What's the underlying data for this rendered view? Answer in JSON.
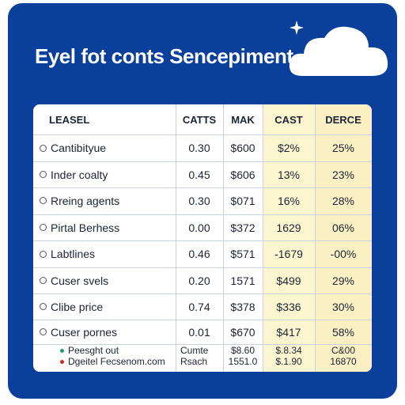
{
  "title": "Eyel fot conts Sencepiment",
  "colors": {
    "panel": "#0a3f9c",
    "highlight_a": "#fbf6cf",
    "highlight_b": "#fbf0c3",
    "legend_green": "#1e9e6b",
    "legend_red": "#c62828"
  },
  "icons": {
    "cloud": "cloud-icon",
    "sparkle": "sparkle-icon"
  },
  "table": {
    "headers": [
      "LEASEL",
      "CATTS",
      "MAK",
      "CAST",
      "DERCE"
    ],
    "rows": [
      {
        "label": "Cantibityue",
        "catts": "0.30",
        "mak": "$600",
        "cast": "$2%",
        "derce": "25%"
      },
      {
        "label": "Inder coalty",
        "catts": "0.45",
        "mak": "$606",
        "cast": "13%",
        "derce": "23%"
      },
      {
        "label": "Rreing agents",
        "catts": "0.30",
        "mak": "$071",
        "cast": "16%",
        "derce": "28%"
      },
      {
        "label": "Pirtal Berhess",
        "catts": "0.00",
        "mak": "$372",
        "cast": "1629",
        "derce": "06%"
      },
      {
        "label": "Labtlines",
        "catts": "0.46",
        "mak": "$571",
        "cast": "-1679",
        "derce": "-00%"
      },
      {
        "label": "Cuser svels",
        "catts": "0.20",
        "mak": "1571",
        "cast": "$499",
        "derce": "29%"
      },
      {
        "label": "Clibe price",
        "catts": "0.74",
        "mak": "$378",
        "cast": "$336",
        "derce": "30%"
      },
      {
        "label": "Cuser pornes",
        "catts": "0.01",
        "mak": "$670",
        "cast": "$417",
        "derce": "58%"
      }
    ],
    "footer": {
      "legend": [
        "Peesght out",
        "Dgeitel Fecsenom.com"
      ],
      "catts": [
        "Cumte",
        "Rsach"
      ],
      "mak": [
        "$8.60",
        "1551.0"
      ],
      "cast": [
        "$.8.34",
        "$.1.90"
      ],
      "derce": [
        "C&00",
        "16870"
      ]
    }
  }
}
